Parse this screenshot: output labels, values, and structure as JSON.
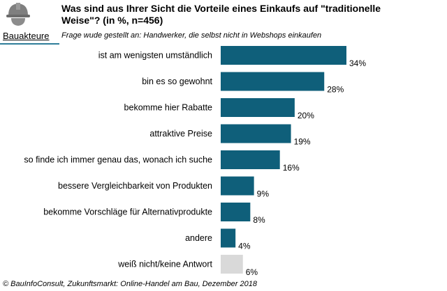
{
  "header": {
    "title": "Was sind aus Ihrer Sicht die Vorteile eines Einkaufs auf \"traditionelle Weise\"? (in %, n=456)",
    "side_label": "Bauakteure",
    "icon": "helmet-worker-icon",
    "subtitle": "Frage wude gestellt an: Handwerker, die selbst nicht in Webshops einkaufen"
  },
  "chart_data": {
    "type": "bar",
    "orientation": "horizontal",
    "title": "Was sind aus Ihrer Sicht die Vorteile eines Einkaufs auf \"traditionelle Weise\"? (in %, n=456)",
    "xlabel": "",
    "ylabel": "",
    "xlim": [
      0,
      34
    ],
    "categories": [
      "ist am wenigsten umständlich",
      "bin es so gewohnt",
      "bekomme hier Rabatte",
      "attraktive Preise",
      "so finde ich immer genau das, wonach ich suche",
      "bessere Vergleichbarkeit von Produkten",
      "bekomme Vorschläge für Alternativprodukte",
      "andere",
      "weiß nicht/keine Antwort"
    ],
    "values": [
      34,
      28,
      20,
      19,
      16,
      9,
      8,
      4,
      6
    ],
    "value_labels": [
      "34%",
      "28%",
      "20%",
      "19%",
      "16%",
      "9%",
      "8%",
      "4%",
      "6%"
    ],
    "colors": [
      "#0f5f7a",
      "#0f5f7a",
      "#0f5f7a",
      "#0f5f7a",
      "#0f5f7a",
      "#0f5f7a",
      "#0f5f7a",
      "#0f5f7a",
      "#d9d9d9"
    ]
  },
  "footer": {
    "source": "© BauInfoConsult, Zukunftsmarkt: Online-Handel am Bau, Dezember 2018"
  }
}
